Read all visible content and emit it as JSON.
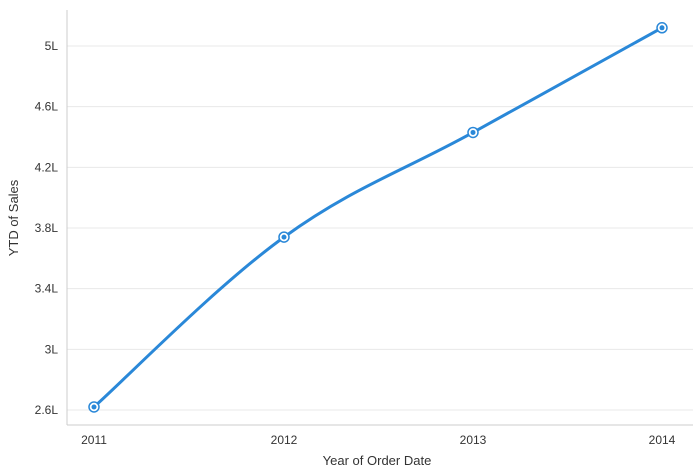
{
  "chart_data": {
    "type": "line",
    "title": "",
    "xlabel": "Year of Order Date",
    "ylabel": "YTD of Sales",
    "categories": [
      "2011",
      "2012",
      "2013",
      "2014"
    ],
    "series": [
      {
        "values": [
          2.62,
          3.74,
          4.43,
          5.12
        ]
      }
    ],
    "ylim": [
      2.55,
      5.25
    ],
    "yticks": [
      2.6,
      3.0,
      3.4,
      3.8,
      4.2,
      4.6,
      5.0
    ],
    "ytick_labels": [
      "2.6L",
      "3L",
      "3.4L",
      "3.8L",
      "4.2L",
      "4.6L",
      "5L"
    ],
    "grid": true,
    "legend": "none",
    "colors": {
      "line": "#2a88d8",
      "grid": "#e8e8e8",
      "axis": "#cccccc"
    }
  }
}
